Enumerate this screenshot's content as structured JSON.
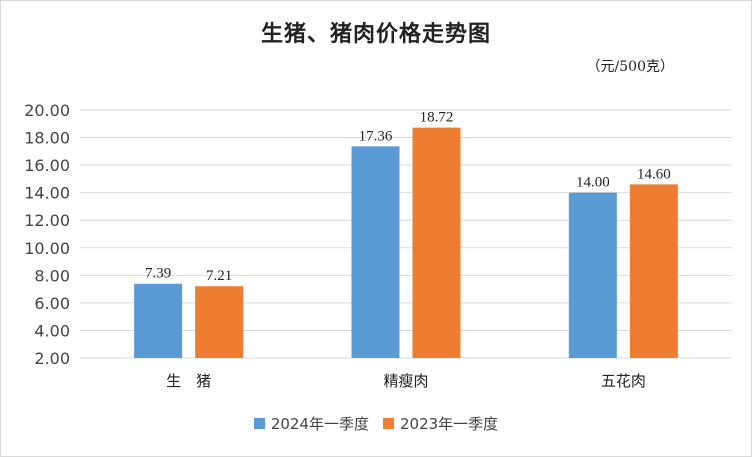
{
  "chart_data": {
    "type": "bar",
    "title": "生猪、猪肉价格走势图",
    "unit": "（元/500克）",
    "categories": [
      "生　猪",
      "精瘦肉",
      "五花肉"
    ],
    "series": [
      {
        "name": "2024年一季度",
        "values": [
          7.39,
          17.36,
          14.0
        ],
        "labels": [
          "7.39",
          "17.36",
          "14.00"
        ],
        "color": "#5b9bd5"
      },
      {
        "name": "2023年一季度",
        "values": [
          7.21,
          18.72,
          14.6
        ],
        "labels": [
          "7.21",
          "18.72",
          "14.60"
        ],
        "color": "#ed7d31"
      }
    ],
    "ylim": [
      2,
      20
    ],
    "yticks": [
      "2.00",
      "4.00",
      "6.00",
      "8.00",
      "10.00",
      "12.00",
      "14.00",
      "16.00",
      "18.00",
      "20.00"
    ],
    "grid": true,
    "legend_position": "bottom"
  }
}
